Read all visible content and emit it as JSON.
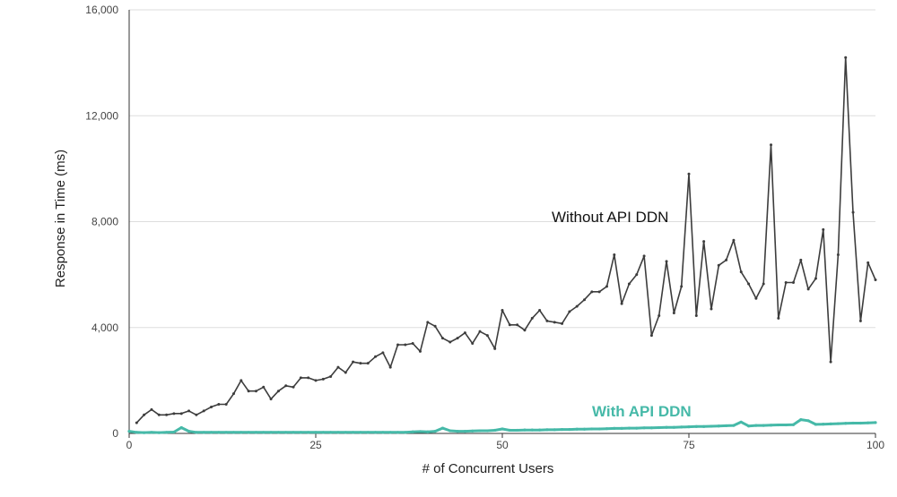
{
  "chart_data": {
    "type": "line",
    "title": "",
    "xlabel": "# of Concurrent Users",
    "ylabel": "Response in Time (ms)",
    "xlim": [
      0,
      100
    ],
    "ylim": [
      0,
      16000
    ],
    "x_ticks": [
      "0",
      "25",
      "50",
      "75",
      "100"
    ],
    "y_ticks": [
      "0",
      "4,000",
      "8,000",
      "12,000",
      "16,000"
    ],
    "grid": "horizontal",
    "legend": "none",
    "series": [
      {
        "name": "Without API DDN",
        "color": "#3d3d3d",
        "x": [
          1,
          2,
          3,
          4,
          5,
          6,
          7,
          8,
          9,
          10,
          11,
          12,
          13,
          14,
          15,
          16,
          17,
          18,
          19,
          20,
          21,
          22,
          23,
          24,
          25,
          26,
          27,
          28,
          29,
          30,
          31,
          32,
          33,
          34,
          35,
          36,
          37,
          38,
          39,
          40,
          41,
          42,
          43,
          44,
          45,
          46,
          47,
          48,
          49,
          50,
          51,
          52,
          53,
          54,
          55,
          56,
          57,
          58,
          59,
          60,
          61,
          62,
          63,
          64,
          65,
          66,
          67,
          68,
          69,
          70,
          71,
          72,
          73,
          74,
          75,
          76,
          77,
          78,
          79,
          80,
          81,
          82,
          83,
          84,
          85,
          86,
          87,
          88,
          89,
          90,
          91,
          92,
          93,
          94,
          95,
          96,
          97,
          98,
          99,
          100
        ],
        "values": [
          400,
          700,
          900,
          700,
          700,
          750,
          750,
          850,
          700,
          850,
          1000,
          1100,
          1100,
          1500,
          2000,
          1600,
          1600,
          1750,
          1300,
          1600,
          1800,
          1750,
          2100,
          2100,
          2000,
          2050,
          2150,
          2500,
          2300,
          2700,
          2650,
          2650,
          2900,
          3050,
          2500,
          3350,
          3350,
          3400,
          3100,
          4200,
          4050,
          3600,
          3450,
          3600,
          3800,
          3400,
          3850,
          3700,
          3200,
          4650,
          4100,
          4100,
          3900,
          4350,
          4650,
          4250,
          4200,
          4150,
          4600,
          4800,
          5050,
          5350,
          5350,
          5550,
          6750,
          4900,
          5650,
          6000,
          6700,
          3700,
          4450,
          6500,
          4550,
          5550,
          9800,
          4450,
          7250,
          4700,
          6350,
          6550,
          7300,
          6100,
          5650,
          5100,
          5650,
          10900,
          4350,
          5700,
          5700,
          6550,
          5450,
          5850,
          7700,
          2700,
          6750,
          14200,
          8350,
          4250,
          6450,
          5800
        ],
        "label": "Without API DDN"
      },
      {
        "name": "With API DDN",
        "color": "#46b9a8",
        "x": [
          0,
          1,
          2,
          3,
          4,
          5,
          6,
          7,
          8,
          9,
          10,
          11,
          12,
          13,
          14,
          15,
          16,
          17,
          18,
          19,
          20,
          21,
          22,
          23,
          24,
          25,
          26,
          27,
          28,
          29,
          30,
          31,
          32,
          33,
          34,
          35,
          36,
          37,
          38,
          39,
          40,
          41,
          42,
          43,
          44,
          45,
          46,
          47,
          48,
          49,
          50,
          51,
          52,
          53,
          54,
          55,
          56,
          57,
          58,
          59,
          60,
          61,
          62,
          63,
          64,
          65,
          66,
          67,
          68,
          69,
          70,
          71,
          72,
          73,
          74,
          75,
          76,
          77,
          78,
          79,
          80,
          81,
          82,
          83,
          84,
          85,
          86,
          87,
          88,
          89,
          90,
          91,
          92,
          93,
          94,
          95,
          96,
          97,
          98,
          99,
          100
        ],
        "values": [
          80,
          40,
          30,
          40,
          30,
          40,
          50,
          220,
          80,
          40,
          40,
          40,
          40,
          40,
          40,
          40,
          40,
          40,
          40,
          40,
          40,
          40,
          40,
          40,
          40,
          40,
          40,
          40,
          40,
          40,
          40,
          40,
          40,
          40,
          40,
          40,
          40,
          40,
          60,
          70,
          60,
          80,
          200,
          100,
          80,
          80,
          90,
          100,
          100,
          120,
          170,
          120,
          120,
          130,
          130,
          130,
          140,
          140,
          150,
          150,
          160,
          160,
          170,
          170,
          180,
          190,
          190,
          200,
          200,
          210,
          210,
          220,
          230,
          230,
          240,
          250,
          260,
          260,
          270,
          280,
          290,
          300,
          430,
          280,
          300,
          300,
          310,
          320,
          320,
          330,
          520,
          480,
          340,
          350,
          360,
          370,
          380,
          390,
          390,
          400,
          410
        ],
        "label": "With API DDN"
      }
    ]
  }
}
